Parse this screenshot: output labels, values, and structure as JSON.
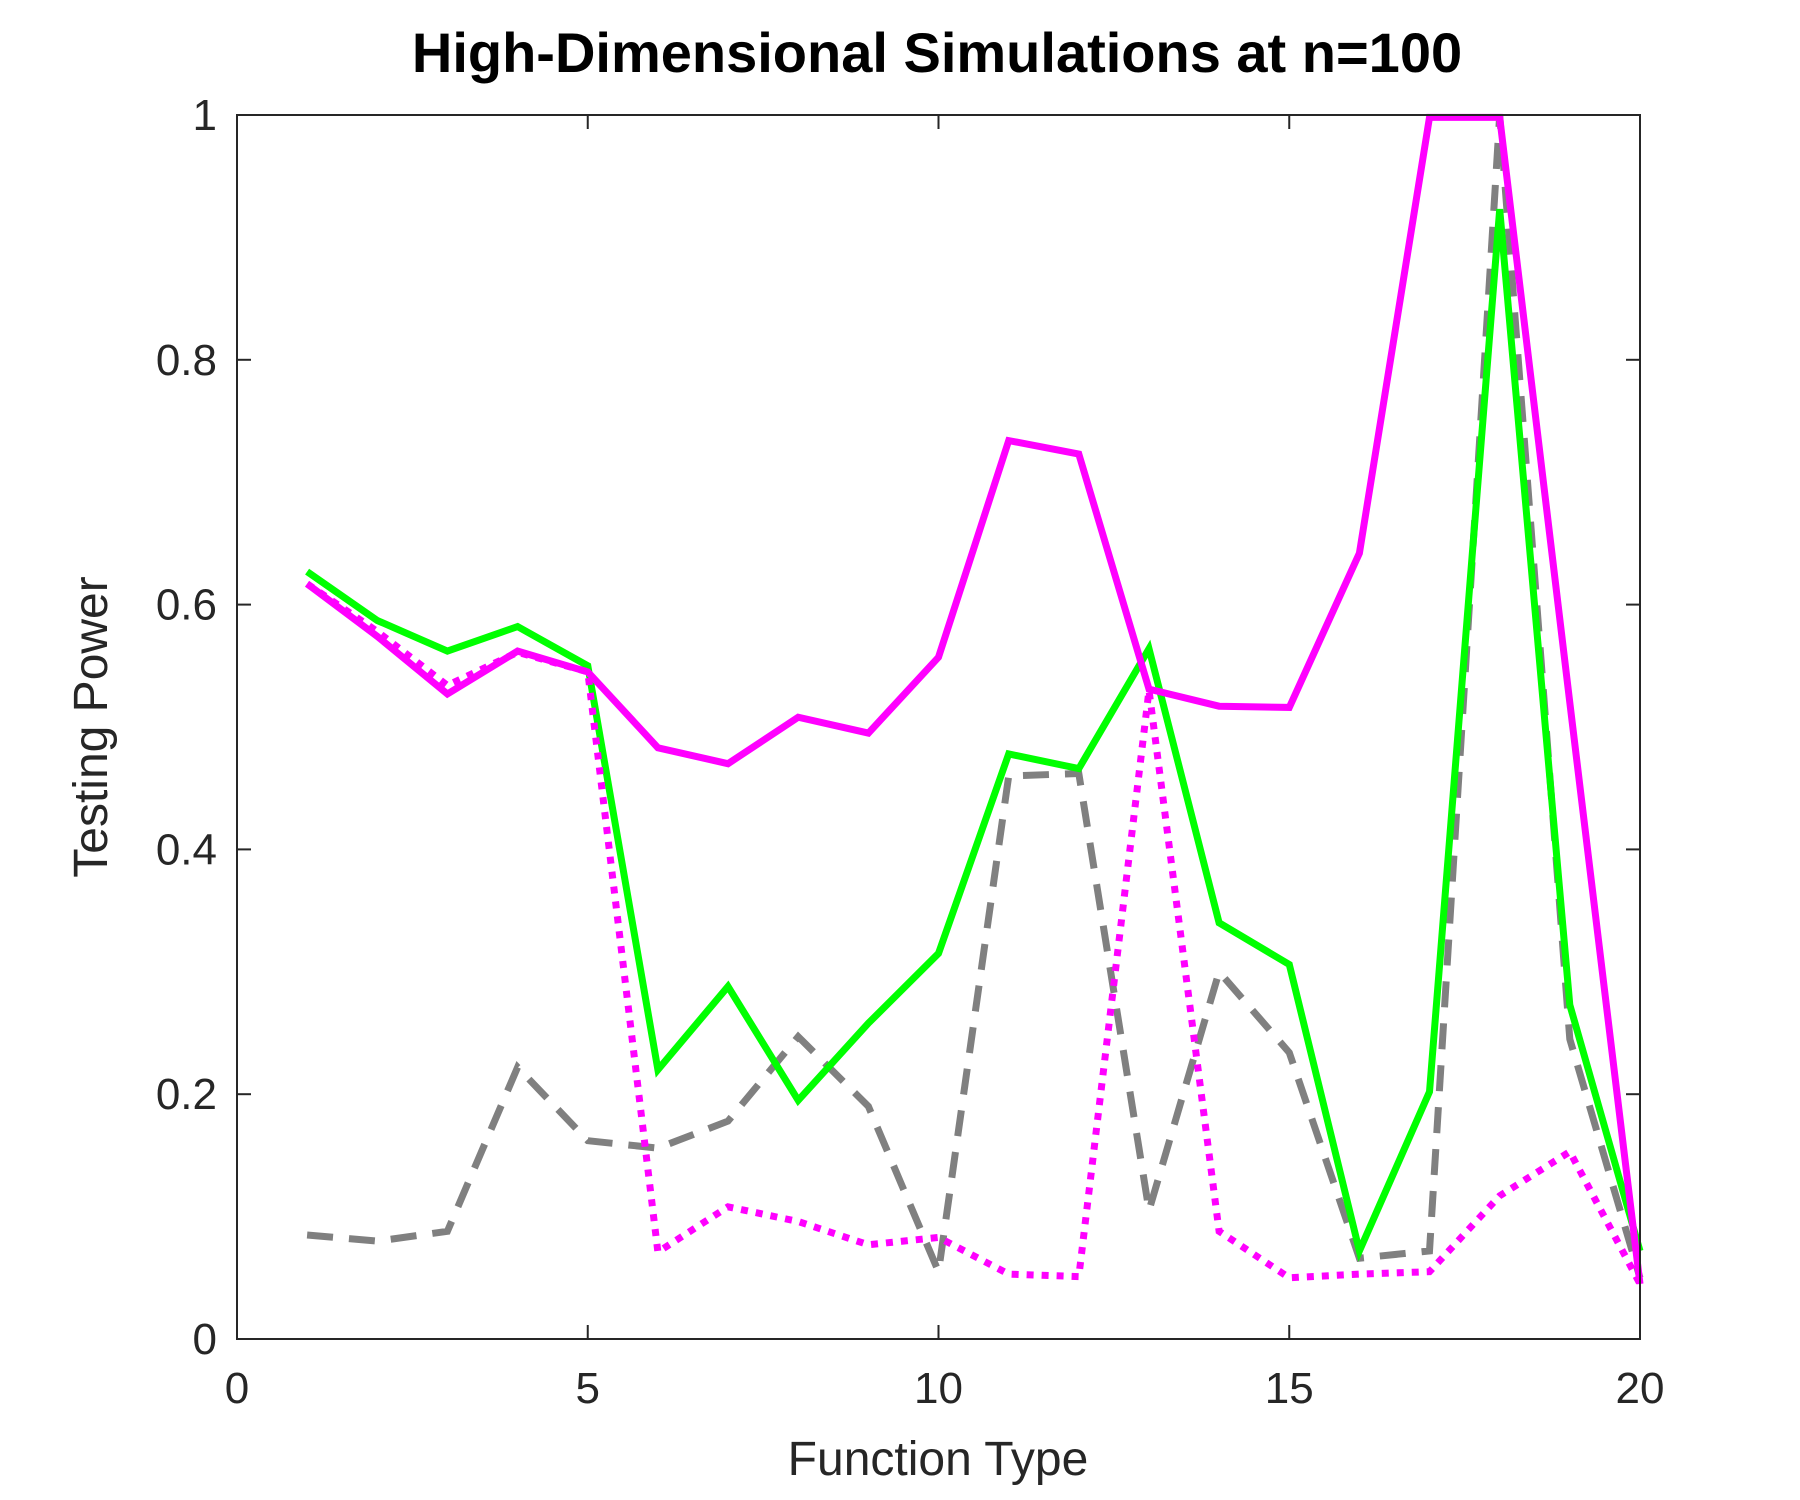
{
  "chart_data": {
    "type": "line",
    "title": "High-Dimensional Simulations at n=100",
    "xlabel": "Function Type",
    "ylabel": "Testing Power",
    "xlim": [
      0,
      20
    ],
    "ylim": [
      0,
      1
    ],
    "xticks": [
      0,
      5,
      10,
      15,
      20
    ],
    "yticks": [
      0,
      0.2,
      0.4,
      0.6,
      0.8,
      1
    ],
    "xtick_labels": [
      "0",
      "5",
      "10",
      "15",
      "20"
    ],
    "ytick_labels": [
      "0",
      "0.2",
      "0.4",
      "0.6",
      "0.8",
      "1"
    ],
    "grid": false,
    "legend": "none",
    "x": [
      1,
      2,
      3,
      4,
      5,
      6,
      7,
      8,
      9,
      10,
      11,
      12,
      13,
      14,
      15,
      16,
      17,
      18,
      19,
      20
    ],
    "series": [
      {
        "color": "#808080",
        "style": "dashed",
        "values": [
          0.085,
          0.08,
          0.088,
          0.222,
          0.162,
          0.156,
          0.178,
          0.247,
          0.19,
          0.055,
          0.46,
          0.462,
          0.105,
          0.3,
          0.234,
          0.066,
          0.072,
          1.0,
          0.245,
          0.05
        ]
      },
      {
        "color": "#00ff00",
        "style": "solid",
        "values": [
          0.627,
          0.587,
          0.562,
          0.582,
          0.55,
          0.22,
          0.288,
          0.195,
          0.258,
          0.315,
          0.478,
          0.466,
          0.564,
          0.34,
          0.306,
          0.072,
          0.202,
          0.923,
          0.273,
          0.072
        ]
      },
      {
        "color": "#ff00ff",
        "style": "dotted",
        "values": [
          0.617,
          0.578,
          0.534,
          0.561,
          0.545,
          0.071,
          0.108,
          0.096,
          0.077,
          0.083,
          0.053,
          0.051,
          0.53,
          0.088,
          0.05,
          0.053,
          0.055,
          0.117,
          0.153,
          0.045
        ]
      },
      {
        "color": "#ff00ff",
        "style": "solid",
        "values": [
          0.617,
          0.574,
          0.527,
          0.562,
          0.545,
          0.483,
          0.47,
          0.508,
          0.495,
          0.557,
          0.734,
          0.723,
          0.531,
          0.517,
          0.516,
          0.642,
          0.998,
          0.998,
          0.52,
          0.045
        ]
      }
    ]
  }
}
